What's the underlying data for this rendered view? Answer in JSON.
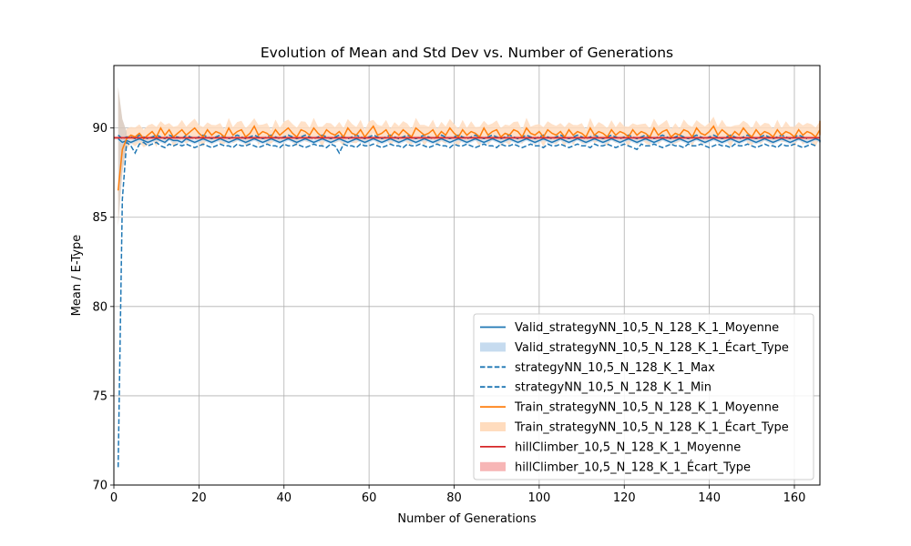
{
  "chart_data": {
    "type": "line",
    "title": "Evolution of Mean and Std Dev vs. Number of Generations",
    "xlabel": "Number of Generations",
    "ylabel": "Mean / E-Type",
    "xlim": [
      0,
      166
    ],
    "ylim": [
      70,
      93.5
    ],
    "xticks": [
      0,
      20,
      40,
      60,
      80,
      100,
      120,
      140,
      160
    ],
    "yticks": [
      70,
      75,
      80,
      85,
      90
    ],
    "grid": true,
    "legend_position": "lower-right",
    "colors": {
      "valid": "#1f77b4",
      "train": "#ff7f0e",
      "hill": "#d62728",
      "valid_band": "#c6dbef",
      "train_band": "#ffdcbe",
      "hill_band": "#f7b6b6",
      "grid": "#b0b0b0"
    },
    "series": [
      {
        "name": "Valid_strategyNN_10,5_N_128_K_1_Moyenne",
        "style": "solid",
        "color": "#1f77b4",
        "kind": "line"
      },
      {
        "name": "Valid_strategyNN_10,5_N_128_K_1_Écart_Type",
        "color": "#1f77b4",
        "kind": "band"
      },
      {
        "name": "strategyNN_10,5_N_128_K_1_Max",
        "style": "dashed",
        "color": "#1f77b4",
        "kind": "line"
      },
      {
        "name": "strategyNN_10,5_N_128_K_1_Min",
        "style": "dashed",
        "color": "#1f77b4",
        "kind": "line"
      },
      {
        "name": "Train_strategyNN_10,5_N_128_K_1_Moyenne",
        "style": "solid",
        "color": "#ff7f0e",
        "kind": "line"
      },
      {
        "name": "Train_strategyNN_10,5_N_128_K_1_Écart_Type",
        "color": "#ff7f0e",
        "kind": "band"
      },
      {
        "name": "hillClimber_10,5_N_128_K_1_Moyenne",
        "style": "solid",
        "color": "#d62728",
        "kind": "line"
      },
      {
        "name": "hillClimber_10,5_N_128_K_1_Écart_Type",
        "color": "#d62728",
        "kind": "band"
      }
    ],
    "train_mean": {
      "x_start": 1,
      "values": [
        86.5,
        88.8,
        89.4,
        89.6,
        89.5,
        89.7,
        89.4,
        89.6,
        89.8,
        89.5,
        90.0,
        89.6,
        89.9,
        89.5,
        89.7,
        89.9,
        89.6,
        89.8,
        90.0,
        89.7,
        89.5,
        89.9,
        89.6,
        89.8,
        89.7,
        89.5,
        90.0,
        89.6,
        89.8,
        89.9,
        89.5,
        89.7,
        90.1,
        89.6,
        89.8,
        89.7,
        89.5,
        89.9,
        89.6,
        89.8,
        90.0,
        89.7,
        89.5,
        89.9,
        89.8,
        89.6,
        90.0,
        89.7,
        89.5,
        89.9,
        89.7,
        89.6,
        89.8,
        89.5,
        90.0,
        89.7,
        89.6,
        89.9,
        89.5,
        89.8,
        90.1,
        89.6,
        89.7,
        89.9,
        89.5,
        89.8,
        89.6,
        89.9,
        89.7,
        89.5,
        90.0,
        89.8,
        89.6,
        89.7,
        89.9,
        89.5,
        89.8,
        89.6,
        90.0,
        89.7,
        89.5,
        89.9,
        89.6,
        89.8,
        89.7,
        89.5,
        90.0,
        89.6,
        89.8,
        89.9,
        89.5,
        89.7,
        89.6,
        89.9,
        89.8,
        89.5,
        90.0,
        89.7,
        89.6,
        89.8,
        89.5,
        89.9,
        89.7,
        89.6,
        89.8,
        89.5,
        89.9,
        89.6,
        89.8,
        89.7,
        89.5,
        90.0,
        89.6,
        89.8,
        89.7,
        89.5,
        89.9,
        89.6,
        89.8,
        89.7,
        89.5,
        89.9,
        89.6,
        89.8,
        89.7,
        89.5,
        90.0,
        89.6,
        89.8,
        89.9,
        89.5,
        89.7,
        89.6,
        89.9,
        89.8,
        89.5,
        90.0,
        89.7,
        89.6,
        89.8,
        90.1,
        89.6,
        89.9,
        89.7,
        89.5,
        89.8,
        89.6,
        90.0,
        89.7,
        89.5,
        89.9,
        89.6,
        89.8,
        89.7,
        89.5,
        89.9,
        89.6,
        89.8,
        89.7,
        89.5,
        89.9,
        89.6,
        89.8,
        89.7,
        89.5,
        89.9,
        89.6,
        90.4
      ]
    },
    "train_std": 0.5,
    "valid_mean": {
      "x_start": 1,
      "values": [
        89.4,
        89.2,
        89.3,
        89.2,
        89.3,
        89.4,
        89.3,
        89.2,
        89.3,
        89.4,
        89.3,
        89.2,
        89.4,
        89.3,
        89.3,
        89.2,
        89.4,
        89.3,
        89.2,
        89.3,
        89.4,
        89.3,
        89.2,
        89.3,
        89.4,
        89.3,
        89.2,
        89.3,
        89.4,
        89.3,
        89.2,
        89.3,
        89.4,
        89.3,
        89.2,
        89.3,
        89.4,
        89.3,
        89.2,
        89.3,
        89.4,
        89.3,
        89.2,
        89.3,
        89.4,
        89.3,
        89.2,
        89.3,
        89.4,
        89.3,
        89.2,
        89.3,
        89.4,
        89.3,
        89.2,
        89.3,
        89.4,
        89.3,
        89.2,
        89.3,
        89.4,
        89.3,
        89.2,
        89.3,
        89.4,
        89.3,
        89.2,
        89.3,
        89.4,
        89.3,
        89.2,
        89.3,
        89.4,
        89.3,
        89.2,
        89.3,
        89.4,
        89.3,
        89.2,
        89.3,
        89.4,
        89.3,
        89.2,
        89.3,
        89.4,
        89.3,
        89.2,
        89.3,
        89.4,
        89.3,
        89.2,
        89.3,
        89.4,
        89.3,
        89.2,
        89.3,
        89.4,
        89.3,
        89.2,
        89.3,
        89.4,
        89.3,
        89.2,
        89.3,
        89.4,
        89.3,
        89.2,
        89.3,
        89.4,
        89.3,
        89.2,
        89.3,
        89.4,
        89.3,
        89.2,
        89.3,
        89.4,
        89.3,
        89.2,
        89.3,
        89.4,
        89.3,
        89.2,
        89.3,
        89.4,
        89.3,
        89.2,
        89.3,
        89.4,
        89.3,
        89.2,
        89.3,
        89.4,
        89.3,
        89.2,
        89.3,
        89.4,
        89.3,
        89.2,
        89.3,
        89.4,
        89.3,
        89.2,
        89.3,
        89.4,
        89.3,
        89.2,
        89.3,
        89.4,
        89.3,
        89.2,
        89.3,
        89.4,
        89.3,
        89.2,
        89.3,
        89.4,
        89.3,
        89.2,
        89.3,
        89.4,
        89.3,
        89.2,
        89.3,
        89.4,
        89.3,
        89.2
      ]
    },
    "valid_max": {
      "x_start": 1,
      "values": [
        89.6,
        89.4,
        89.5,
        89.5,
        89.4,
        89.6,
        89.5,
        89.4,
        89.5,
        89.6,
        89.5,
        89.4,
        89.6,
        89.5,
        89.5,
        89.4,
        89.6,
        89.5,
        89.4,
        89.5,
        89.6,
        89.5,
        89.4,
        89.5,
        89.6,
        89.5,
        89.4,
        89.5,
        89.6,
        89.5,
        89.4,
        89.5,
        89.6,
        89.5,
        89.4,
        89.5,
        89.6,
        89.5,
        89.4,
        89.5,
        89.6,
        89.5,
        89.4,
        89.5,
        89.6,
        89.5,
        89.4,
        89.5,
        89.6,
        89.5,
        89.4,
        89.5,
        89.6,
        89.5,
        89.4,
        89.5,
        89.6,
        89.5,
        89.4,
        89.5,
        89.6,
        89.5,
        89.4,
        89.5,
        89.6,
        89.5,
        89.4,
        89.5,
        89.6,
        89.5,
        89.4,
        89.5,
        89.6,
        89.5,
        89.4,
        89.5,
        89.6,
        89.5,
        89.4,
        89.5,
        89.6,
        89.5,
        89.4,
        89.5,
        89.6,
        89.5,
        89.4,
        89.5,
        89.6,
        89.5,
        89.4,
        89.5,
        89.6,
        89.5,
        89.4,
        89.5,
        89.6,
        89.5,
        89.4,
        89.5,
        89.6,
        89.5,
        89.4,
        89.5,
        89.6,
        89.5,
        89.4,
        89.5,
        89.6,
        89.5,
        89.4,
        89.5,
        89.6,
        89.5,
        89.4,
        89.5,
        89.6,
        89.5,
        89.4,
        89.5,
        89.6,
        89.5,
        89.4,
        89.5,
        89.6,
        89.5,
        89.4,
        89.5,
        89.6,
        89.5,
        89.4,
        89.5,
        89.6,
        89.5,
        89.4,
        89.5,
        89.6,
        89.5,
        89.4,
        89.5,
        89.6,
        89.5,
        89.4,
        89.5,
        89.6,
        89.5,
        89.4,
        89.5,
        89.6,
        89.5,
        89.4,
        89.5,
        89.6,
        89.5,
        89.4,
        89.5,
        89.6,
        89.5,
        89.4,
        89.5,
        89.6,
        89.5,
        89.4
      ]
    },
    "valid_min": {
      "x_start": 1,
      "values": [
        71.0,
        86.0,
        89.2,
        89.0,
        88.6,
        89.1,
        89.2,
        89.0,
        89.1,
        89.2,
        89.0,
        88.9,
        89.1,
        89.0,
        89.1,
        89.0,
        89.1,
        89.0,
        88.9,
        89.0,
        89.1,
        89.0,
        88.9,
        89.0,
        89.1,
        89.0,
        89.0,
        88.9,
        89.1,
        89.0,
        89.0,
        89.1,
        89.0,
        88.9,
        89.0,
        89.1,
        89.0,
        89.0,
        88.9,
        89.1,
        89.0,
        89.0,
        89.1,
        89.0,
        88.9,
        89.0,
        89.1,
        89.0,
        89.0,
        88.9,
        89.1,
        89.0,
        88.6,
        89.1,
        89.0,
        89.0,
        88.9,
        89.1,
        89.0,
        89.0,
        89.1,
        89.0,
        88.9,
        89.0,
        89.1,
        89.0,
        89.0,
        88.9,
        89.1,
        89.0,
        89.0,
        89.1,
        89.0,
        88.9,
        89.0,
        89.1,
        89.0,
        89.0,
        88.9,
        89.1,
        89.0,
        89.0,
        89.1,
        89.0,
        88.9,
        89.0,
        89.1,
        89.0,
        89.0,
        88.9,
        89.1,
        89.0,
        89.0,
        89.1,
        89.0,
        88.9,
        89.0,
        89.1,
        89.0,
        89.0,
        88.9,
        89.1,
        89.0,
        89.0,
        89.1,
        89.0,
        88.9,
        89.0,
        89.1,
        89.0,
        89.0,
        88.9,
        89.1,
        89.0,
        89.0,
        89.1,
        89.0,
        88.9,
        89.0,
        89.1,
        89.0,
        88.9,
        88.8,
        89.1,
        89.0,
        89.0,
        89.1,
        89.0,
        88.9,
        89.0,
        89.1,
        89.0,
        89.0,
        88.9,
        89.1,
        89.0,
        89.0,
        89.1,
        89.0,
        88.9,
        89.0,
        89.1,
        89.0,
        89.0,
        88.9,
        89.1,
        89.0,
        89.0,
        89.1,
        89.0,
        88.9,
        89.0,
        89.1,
        89.0,
        89.0,
        88.9,
        89.1,
        89.0,
        89.0,
        89.1,
        89.0,
        88.9,
        89.0,
        89.1,
        89.0
      ]
    },
    "hill_mean": 89.45,
    "hill_std": 0.1,
    "early_band": {
      "x": [
        1,
        2,
        3
      ],
      "upper": [
        92.3,
        90.5,
        89.8
      ],
      "lower": [
        84.5,
        87.5,
        89.0
      ]
    }
  }
}
